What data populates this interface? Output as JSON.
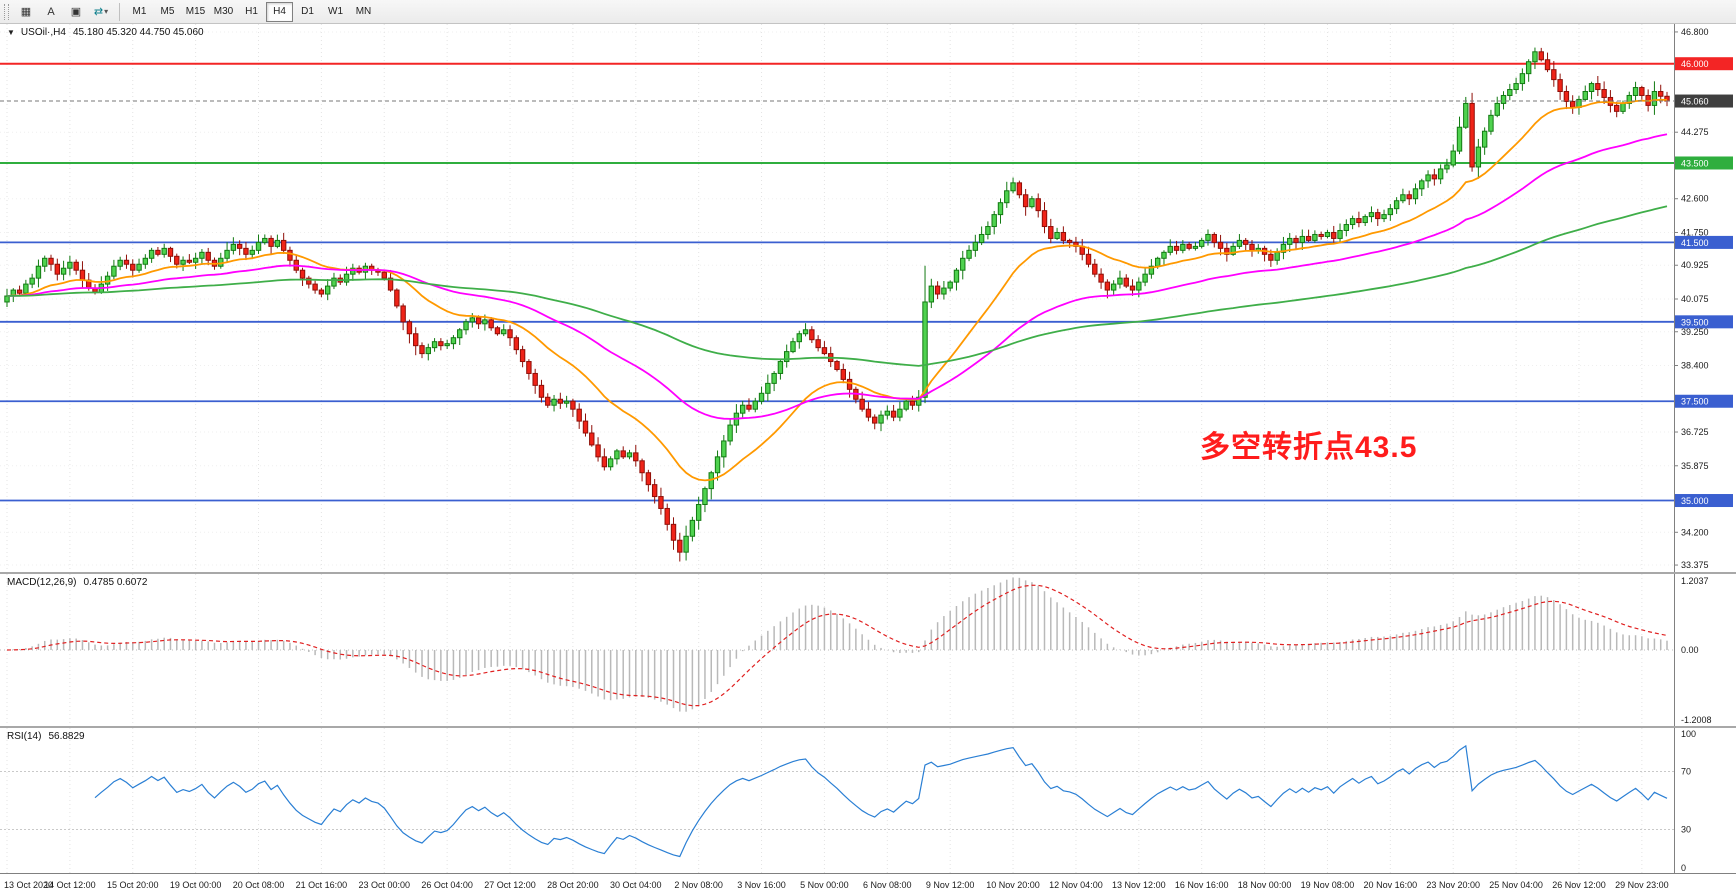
{
  "toolbar": {
    "icons": [
      {
        "name": "chart-grid-icon",
        "glyph": "▦"
      },
      {
        "name": "text-annotation-icon",
        "glyph": "A"
      },
      {
        "name": "frame-tool-icon",
        "glyph": "▣"
      },
      {
        "name": "arrows-dropdown-icon",
        "glyph": "⇄"
      }
    ],
    "timeframes": [
      {
        "label": "M1",
        "active": false
      },
      {
        "label": "M5",
        "active": false
      },
      {
        "label": "M15",
        "active": false
      },
      {
        "label": "M30",
        "active": false
      },
      {
        "label": "H1",
        "active": false
      },
      {
        "label": "H4",
        "active": true
      },
      {
        "label": "D1",
        "active": false
      },
      {
        "label": "W1",
        "active": false
      },
      {
        "label": "MN",
        "active": false
      }
    ]
  },
  "main": {
    "dropdown_glyph": "▼",
    "symbol_period": "USOil·,H4",
    "ohlc_text": "45.180 45.320 44.750 45.060",
    "annotation_text": "多空转折点43.5",
    "annotation_color": "#ff1c1c"
  },
  "macd": {
    "title": "MACD(12,26,9)",
    "values_text": "0.4785 0.6072",
    "scale_labels": [
      "1.2037",
      "0.00",
      "-1.2008"
    ],
    "display_range": 1.32,
    "histogram_color": "#b9b9b9",
    "signal_color": "#e02020"
  },
  "rsi": {
    "title": "RSI(14)",
    "value_text": "56.8829",
    "scale_labels": [
      "100",
      "70",
      "30",
      "0"
    ],
    "levels": [
      70,
      30
    ],
    "color": "#2a7fd4"
  },
  "colors": {
    "candle_up": "#4fd24f",
    "candle_up_border": "#127a12",
    "candle_down": "#ef2318",
    "candle_down_border": "#8f0f08",
    "axis_line": "#808080",
    "axis_text": "#1a1a1a"
  },
  "chart_data": {
    "type": "candlestick",
    "symbol": "USOil",
    "timeframe": "H4",
    "title": "USOil,H4",
    "last_ohlc": {
      "open": 45.18,
      "high": 45.32,
      "low": 44.75,
      "close": 45.06
    },
    "first_open": 40.0,
    "bars_per_tick": 10,
    "x_tick_labels": [
      "13 Oct 2020",
      "14 Oct 12:00",
      "15 Oct 20:00",
      "19 Oct 00:00",
      "20 Oct 08:00",
      "21 Oct 16:00",
      "23 Oct 00:00",
      "26 Oct 04:00",
      "27 Oct 12:00",
      "28 Oct 20:00",
      "30 Oct 04:00",
      "2 Nov 08:00",
      "3 Nov 16:00",
      "5 Nov 00:00",
      "6 Nov 08:00",
      "9 Nov 12:00",
      "10 Nov 20:00",
      "12 Nov 04:00",
      "13 Nov 12:00",
      "16 Nov 16:00",
      "18 Nov 00:00",
      "19 Nov 08:00",
      "20 Nov 16:00",
      "23 Nov 20:00",
      "25 Nov 04:00",
      "26 Nov 12:00",
      "29 Nov 23:00"
    ],
    "ylim": [
      33.2,
      47.0
    ],
    "y_ticks": [
      46.8,
      44.275,
      42.6,
      41.75,
      40.925,
      40.075,
      39.25,
      38.4,
      36.725,
      35.875,
      34.2,
      33.375
    ],
    "price_badges": [
      {
        "value": 46.0,
        "label": "46.000",
        "bg": "#f32525"
      },
      {
        "value": 45.06,
        "label": "45.060",
        "bg": "#3f3f3f"
      },
      {
        "value": 43.5,
        "label": "43.500",
        "bg": "#2fae3e"
      },
      {
        "value": 41.5,
        "label": "41.500",
        "bg": "#3a5fd0"
      },
      {
        "value": 39.5,
        "label": "39.500",
        "bg": "#3a5fd0"
      },
      {
        "value": 37.5,
        "label": "37.500",
        "bg": "#3a5fd0"
      },
      {
        "value": 35.0,
        "label": "35.000",
        "bg": "#3a5fd0"
      }
    ],
    "horizontal_levels": [
      {
        "value": 46.0,
        "color": "#f32525",
        "style": "solid",
        "width": 2
      },
      {
        "value": 45.06,
        "color": "#777777",
        "style": "dashed",
        "width": 1,
        "role": "current-price"
      },
      {
        "value": 43.5,
        "color": "#2fae3e",
        "style": "solid",
        "width": 2
      },
      {
        "value": 41.5,
        "color": "#3a5fd0",
        "style": "solid",
        "width": 1.8
      },
      {
        "value": 39.5,
        "color": "#3a5fd0",
        "style": "solid",
        "width": 1.8
      },
      {
        "value": 37.5,
        "color": "#3a5fd0",
        "style": "solid",
        "width": 1.8
      },
      {
        "value": 35.0,
        "color": "#3a5fd0",
        "style": "solid",
        "width": 1.8
      }
    ],
    "moving_averages": [
      {
        "period": 21,
        "color": "#ff9900"
      },
      {
        "period": 55,
        "color": "#ff00ff"
      },
      {
        "period": 144,
        "color": "#3fae49"
      }
    ],
    "indicators": [
      {
        "name": "MACD",
        "params": [
          12,
          26,
          9
        ],
        "current_values": [
          0.4785,
          0.6072
        ],
        "scale": [
          -1.2008,
          1.2037
        ],
        "derived_from": "closes"
      },
      {
        "name": "RSI",
        "params": [
          14
        ],
        "current_value": 56.8829,
        "levels": [
          70,
          30
        ],
        "scale": [
          0,
          100
        ],
        "derived_from": "closes"
      }
    ],
    "annotation": {
      "text": "多空转折点43.5",
      "color": "#ff1c1c",
      "price_near": 36.4
    },
    "closes": [
      40.15,
      40.3,
      40.22,
      40.45,
      40.6,
      40.9,
      41.1,
      40.95,
      40.7,
      40.85,
      41.0,
      40.8,
      40.55,
      40.35,
      40.25,
      40.45,
      40.65,
      40.9,
      41.05,
      40.95,
      40.8,
      40.95,
      41.1,
      41.3,
      41.2,
      41.35,
      41.15,
      40.95,
      41.05,
      41.0,
      41.1,
      41.25,
      41.05,
      40.9,
      41.1,
      41.3,
      41.45,
      41.35,
      41.2,
      41.3,
      41.5,
      41.6,
      41.4,
      41.55,
      41.3,
      41.05,
      40.8,
      40.6,
      40.45,
      40.3,
      40.2,
      40.4,
      40.6,
      40.5,
      40.7,
      40.85,
      40.75,
      40.9,
      40.8,
      40.75,
      40.6,
      40.3,
      39.9,
      39.5,
      39.2,
      38.9,
      38.7,
      38.85,
      39.0,
      38.9,
      38.95,
      39.1,
      39.3,
      39.5,
      39.6,
      39.45,
      39.55,
      39.35,
      39.2,
      39.3,
      39.1,
      38.8,
      38.5,
      38.2,
      37.9,
      37.6,
      37.4,
      37.55,
      37.45,
      37.5,
      37.3,
      37.0,
      36.7,
      36.4,
      36.1,
      35.85,
      36.05,
      36.25,
      36.1,
      36.2,
      36.0,
      35.7,
      35.4,
      35.1,
      34.8,
      34.4,
      34.0,
      33.7,
      34.1,
      34.5,
      34.9,
      35.3,
      35.7,
      36.1,
      36.5,
      36.9,
      37.2,
      37.4,
      37.3,
      37.5,
      37.7,
      37.95,
      38.2,
      38.5,
      38.75,
      39.0,
      39.2,
      39.3,
      39.05,
      38.85,
      38.7,
      38.5,
      38.3,
      38.05,
      37.8,
      37.55,
      37.3,
      37.1,
      36.95,
      37.15,
      37.25,
      37.1,
      37.3,
      37.5,
      37.4,
      37.6,
      40.0,
      40.4,
      40.2,
      40.35,
      40.5,
      40.8,
      41.1,
      41.3,
      41.5,
      41.7,
      41.9,
      42.2,
      42.5,
      42.8,
      43.0,
      42.7,
      42.4,
      42.6,
      42.3,
      41.9,
      41.6,
      41.75,
      41.55,
      41.5,
      41.4,
      41.2,
      40.95,
      40.7,
      40.5,
      40.3,
      40.45,
      40.6,
      40.4,
      40.3,
      40.5,
      40.7,
      40.9,
      41.1,
      41.25,
      41.4,
      41.3,
      41.45,
      41.35,
      41.4,
      41.55,
      41.7,
      41.5,
      41.35,
      41.2,
      41.4,
      41.55,
      41.45,
      41.3,
      41.35,
      41.2,
      41.05,
      41.25,
      41.45,
      41.6,
      41.5,
      41.65,
      41.55,
      41.7,
      41.65,
      41.75,
      41.6,
      41.8,
      41.95,
      42.1,
      42.0,
      42.15,
      42.25,
      42.1,
      42.2,
      42.35,
      42.55,
      42.7,
      42.6,
      42.85,
      43.05,
      43.2,
      43.1,
      43.35,
      43.45,
      43.8,
      44.4,
      45.0,
      43.4,
      43.9,
      44.3,
      44.7,
      45.0,
      45.2,
      45.35,
      45.5,
      45.75,
      46.05,
      46.3,
      46.1,
      45.85,
      45.6,
      45.3,
      45.05,
      44.9,
      45.1,
      45.3,
      45.5,
      45.35,
      45.15,
      44.95,
      44.8,
      45.0,
      45.2,
      45.4,
      45.2,
      44.95,
      45.3,
      45.18,
      45.06
    ]
  }
}
